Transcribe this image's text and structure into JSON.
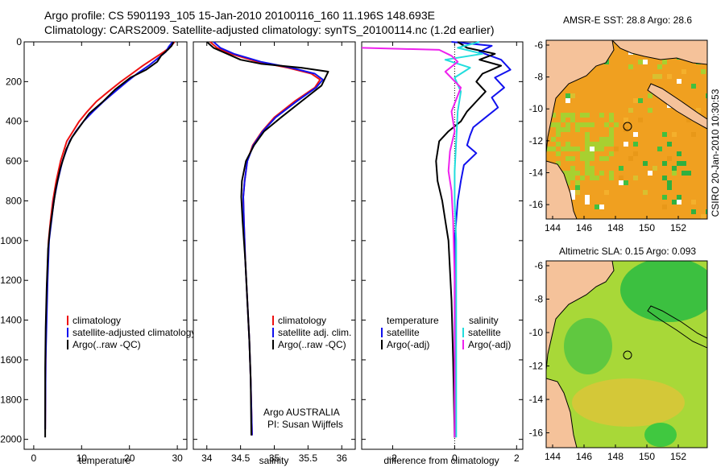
{
  "header": {
    "title_line1": "Argo profile: CS 5901193_105 15-Jan-2010 20100116_160 11.196S 148.693E",
    "title_line2": "Climatology: CARS2009. Satellite-adjusted climatology: synTS_20100114.nc (1.2d earlier)"
  },
  "credit": "CSIRO 20-Jan-2010 10:30:53",
  "colors": {
    "climatology": "#ee1111",
    "satellite": "#1111ee",
    "argo": "#000000",
    "salinity_sat": "#22dddd",
    "salinity_argo": "#ee22ee",
    "land": "#f5c29a"
  },
  "chart_data": [
    {
      "type": "line",
      "id": "temperature",
      "xlabel": "temperature",
      "ylabel": "",
      "xlim": [
        -2,
        32
      ],
      "ylim": [
        2050,
        0
      ],
      "xticks": [
        0,
        10,
        20,
        30
      ],
      "yticks": [
        0,
        200,
        400,
        600,
        800,
        1000,
        1200,
        1400,
        1600,
        1800,
        2000
      ],
      "legend": [
        "climatology",
        "satellite-adjusted climatology",
        "Argo(..raw -QC)"
      ],
      "series": [
        {
          "name": "climatology",
          "color": "#ee1111",
          "x": [
            29.4,
            28.6,
            27.2,
            25.3,
            22.8,
            20.5,
            18.2,
            15.6,
            13.1,
            11.2,
            9.5,
            8.2,
            6.9,
            5.6,
            4.7,
            4.0,
            3.5,
            3.1,
            2.8,
            2.6,
            2.5,
            2.4
          ],
          "y": [
            0,
            25,
            50,
            80,
            120,
            160,
            200,
            250,
            300,
            350,
            400,
            450,
            500,
            600,
            700,
            800,
            900,
            1000,
            1200,
            1400,
            1600,
            1950
          ]
        },
        {
          "name": "satellite",
          "color": "#1111ee",
          "x": [
            29.0,
            28.2,
            27.6,
            26.1,
            24.0,
            21.6,
            19.5,
            17.0,
            14.6,
            12.4,
            10.4,
            8.8,
            7.5,
            6.0,
            5.0,
            4.2,
            3.7,
            3.2,
            2.9,
            2.7,
            2.5,
            2.4
          ],
          "y": [
            0,
            25,
            50,
            80,
            120,
            160,
            200,
            250,
            300,
            350,
            400,
            450,
            500,
            600,
            700,
            800,
            900,
            1000,
            1200,
            1400,
            1600,
            1950
          ]
        },
        {
          "name": "Argo",
          "color": "#000000",
          "x": [
            29.2,
            28.8,
            28.0,
            26.6,
            25.8,
            23.5,
            20.2,
            17.0,
            14.5,
            11.6,
            9.8,
            8.0,
            6.8,
            5.5,
            4.6,
            4.0,
            3.4,
            3.0,
            2.7,
            2.5,
            2.4,
            2.4
          ],
          "y": [
            0,
            20,
            40,
            70,
            100,
            140,
            180,
            240,
            300,
            360,
            420,
            480,
            540,
            640,
            740,
            840,
            940,
            1040,
            1240,
            1440,
            1640,
            1990
          ]
        }
      ]
    },
    {
      "type": "line",
      "id": "salinity",
      "xlabel": "salinity",
      "ylabel": "",
      "xlim": [
        33.8,
        36.2
      ],
      "ylim": [
        2050,
        0
      ],
      "xticks": [
        34,
        34.5,
        35,
        35.5,
        36
      ],
      "legend": [
        "climatology",
        "satellite adj. clim.",
        "Argo(..raw -QC)"
      ],
      "annotation": [
        "Argo AUSTRALIA",
        "PI: Susan Wijffels"
      ],
      "series": [
        {
          "name": "climatology",
          "color": "#ee1111",
          "x": [
            34.05,
            34.15,
            34.35,
            34.75,
            35.2,
            35.55,
            35.68,
            35.6,
            35.3,
            35.0,
            34.82,
            34.68,
            34.6,
            34.56,
            34.54,
            34.55,
            34.57,
            34.6,
            34.63,
            34.65,
            34.67
          ],
          "y": [
            0,
            30,
            60,
            100,
            130,
            160,
            190,
            230,
            300,
            380,
            450,
            520,
            600,
            700,
            780,
            900,
            1100,
            1300,
            1500,
            1700,
            1980
          ]
        },
        {
          "name": "satellite",
          "color": "#1111ee",
          "x": [
            34.1,
            34.2,
            34.4,
            34.8,
            35.25,
            35.6,
            35.72,
            35.62,
            35.33,
            35.02,
            34.83,
            34.69,
            34.6,
            34.56,
            34.54,
            34.55,
            34.57,
            34.6,
            34.63,
            34.65,
            34.67
          ],
          "y": [
            0,
            30,
            60,
            100,
            130,
            160,
            190,
            230,
            300,
            380,
            450,
            520,
            600,
            700,
            780,
            900,
            1100,
            1300,
            1500,
            1700,
            1980
          ]
        },
        {
          "name": "Argo",
          "color": "#000000",
          "x": [
            34.0,
            34.1,
            34.3,
            34.5,
            34.8,
            35.4,
            35.8,
            35.7,
            35.4,
            35.1,
            34.85,
            34.7,
            34.58,
            34.52,
            34.51,
            34.53,
            34.57,
            34.6,
            34.63,
            34.65,
            34.66
          ],
          "y": [
            0,
            30,
            60,
            90,
            110,
            130,
            150,
            220,
            300,
            380,
            450,
            520,
            600,
            700,
            780,
            900,
            1100,
            1300,
            1500,
            1700,
            1980
          ]
        }
      ]
    },
    {
      "type": "line",
      "id": "difference",
      "xlabel": "difference from climatology",
      "ylabel": "",
      "xlim": [
        -3,
        2.2
      ],
      "ylim": [
        2050,
        0
      ],
      "xticks": [
        -2,
        0,
        2
      ],
      "legend_groups": [
        {
          "title": "temperature",
          "entries": [
            "satellite",
            "Argo(-adj)"
          ]
        },
        {
          "title": "salinity",
          "entries": [
            "satellite",
            "Argo(-adj)"
          ]
        }
      ],
      "series": [
        {
          "name": "temperature satellite",
          "color": "#1111ee",
          "x": [
            -0.1,
            1.2,
            0.8,
            1.5,
            1.8,
            1.3,
            1.6,
            1.2,
            1.4,
            1.0,
            0.6,
            0.5,
            0.4,
            0.7,
            0.3,
            0.2,
            0.1,
            0.0,
            0.0,
            0.0,
            0.0
          ],
          "y": [
            0,
            20,
            50,
            90,
            140,
            180,
            230,
            280,
            330,
            380,
            430,
            470,
            520,
            560,
            620,
            700,
            800,
            1000,
            1400,
            1800,
            1990
          ]
        },
        {
          "name": "temperature Argo",
          "color": "#000000",
          "x": [
            0.1,
            0.4,
            1.3,
            0.8,
            1.5,
            0.9,
            0.7,
            1.0,
            0.7,
            0.4,
            0.2,
            -0.2,
            -0.5,
            -0.6,
            -0.55,
            -0.4,
            -0.3,
            -0.2,
            -0.1,
            -0.05,
            0.0
          ],
          "y": [
            0,
            30,
            60,
            90,
            120,
            160,
            200,
            250,
            300,
            350,
            400,
            450,
            500,
            600,
            700,
            800,
            900,
            1000,
            1300,
            1600,
            1990
          ]
        },
        {
          "name": "salinity satellite",
          "color": "#22dddd",
          "x": [
            0.8,
            0.1,
            0.9,
            -0.3,
            0.5,
            0.0,
            0.2,
            0.1,
            0.05,
            0.0,
            0.0,
            0.05,
            0.05,
            0.05,
            0.05,
            0.05
          ],
          "y": [
            0,
            30,
            60,
            90,
            130,
            180,
            250,
            350,
            500,
            650,
            800,
            1000,
            1300,
            1600,
            1850,
            1990
          ]
        },
        {
          "name": "salinity Argo",
          "color": "#ee22ee",
          "x": [
            -3.0,
            -0.5,
            -0.1,
            0.1,
            -0.3,
            0.2,
            -0.1,
            0.0,
            -0.15,
            -0.2,
            -0.1,
            -0.05,
            0.0,
            0.0
          ],
          "y": [
            30,
            40,
            70,
            100,
            150,
            230,
            350,
            450,
            550,
            650,
            750,
            900,
            1200,
            1990
          ]
        }
      ]
    }
  ],
  "maps": [
    {
      "title": "AMSR-E SST: 28.8 Argo: 28.6",
      "xticks": [
        "144",
        "146",
        "148",
        "150",
        "152"
      ],
      "yticks": [
        "-6",
        "-8",
        "-10",
        "-12",
        "-14",
        "-16"
      ]
    },
    {
      "title": "Altimetric SLA: 0.15 Argo: 0.093",
      "xticks": [
        "144",
        "146",
        "148",
        "150",
        "152"
      ],
      "yticks": [
        "-6",
        "-8",
        "-10",
        "-12",
        "-14",
        "-16"
      ]
    }
  ]
}
